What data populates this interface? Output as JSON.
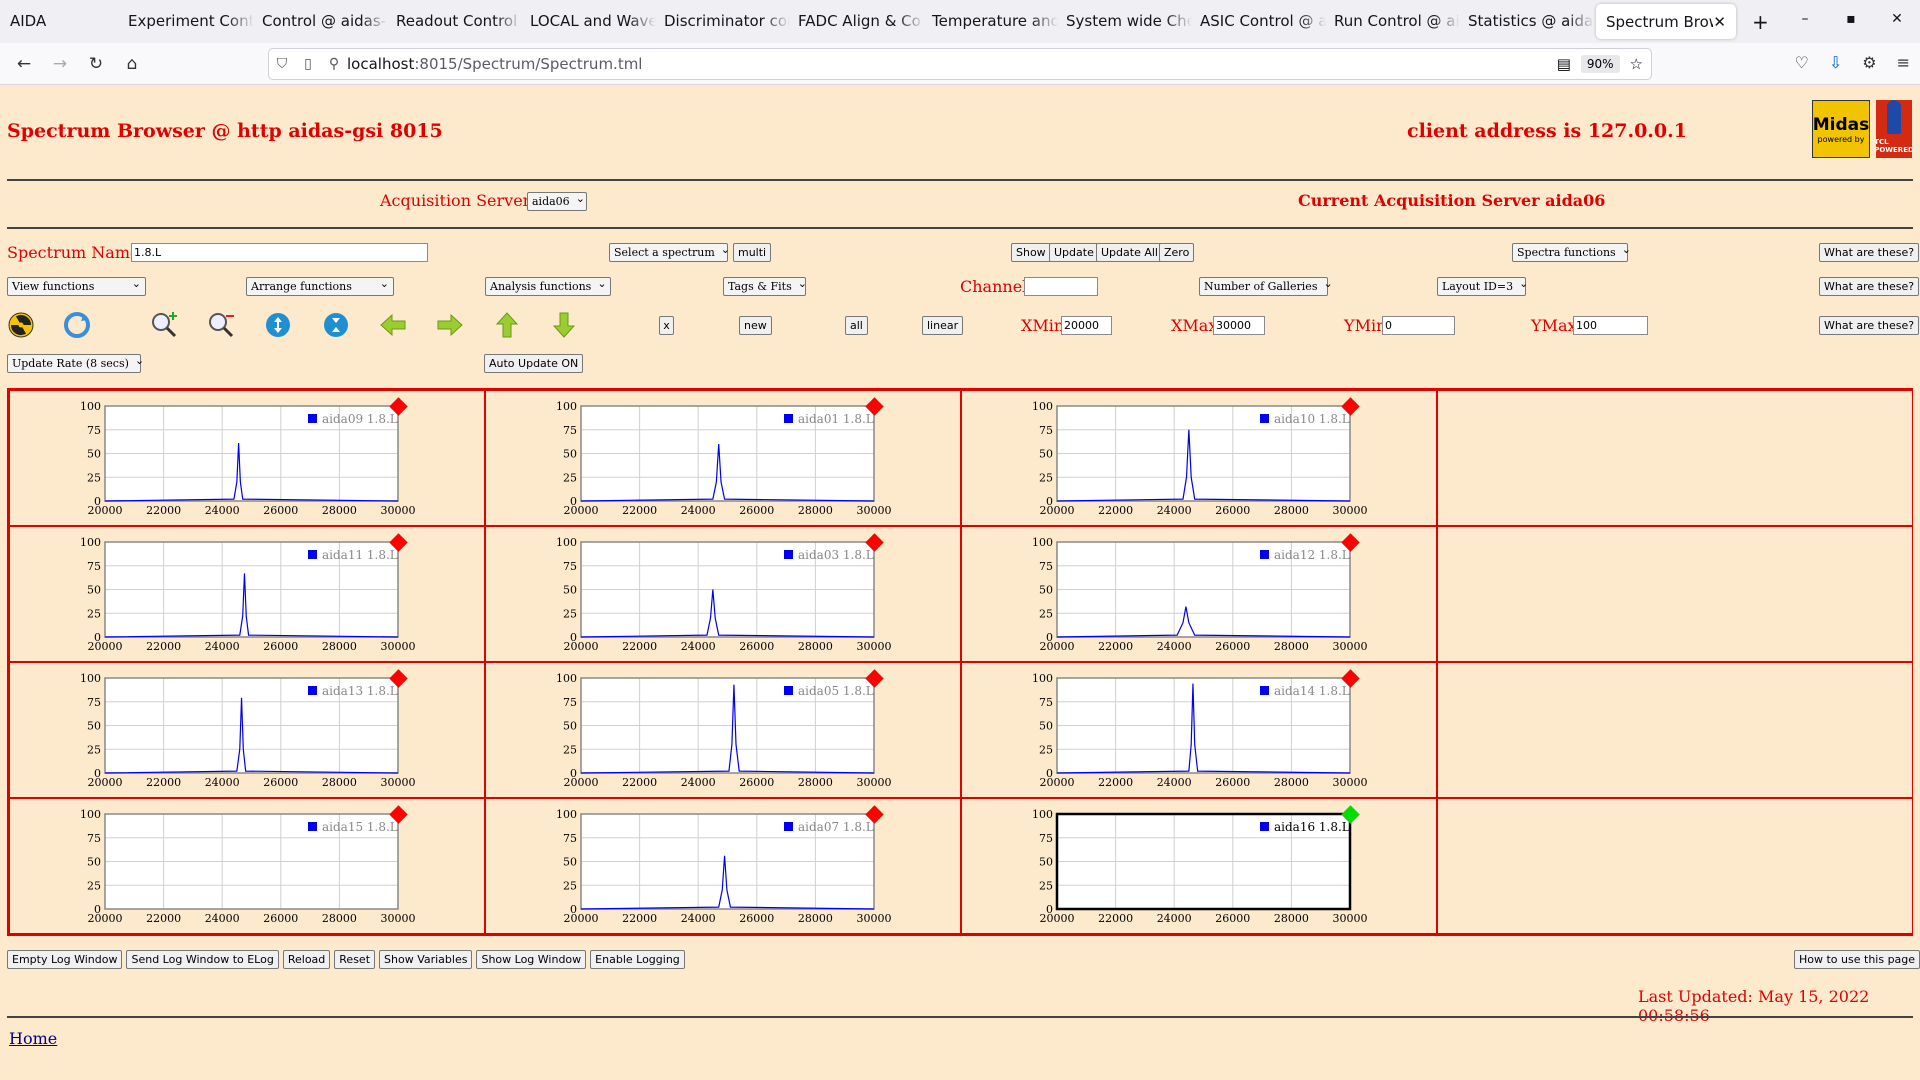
{
  "browser": {
    "app_name": "AIDA",
    "tabs": [
      "Experiment Contr",
      "Control @ aidas-",
      "Readout Control",
      "LOCAL and Wave",
      "Discriminator con",
      "FADC Align & Co",
      "Temperature and",
      "System wide Che",
      "ASIC Control @ a",
      "Run Control @ ai",
      "Statistics @ aida",
      "Spectrum Brow"
    ],
    "url_host": "localhost",
    "url_rest": ":8015/Spectrum/Spectrum.tml",
    "zoom": "90%"
  },
  "header": {
    "title": "Spectrum Browser @ http aidas-gsi 8015",
    "client": "client address is 127.0.0.1",
    "logo_text": "Midas",
    "logo_sub": "powered by",
    "logo2_text": "TCL POWERED"
  },
  "servers": {
    "label": "Acquisition Servers",
    "selected": "aida06",
    "current": "Current Acquisition Server aida06"
  },
  "controls": {
    "spectrum_name_label": "Spectrum Name:",
    "spectrum_name_value": "1.8.L",
    "select_spectrum": "Select a spectrum",
    "multi": "multi",
    "show": "Show",
    "update": "Update",
    "update_all": "Update All",
    "zero": "Zero",
    "spectra_functions": "Spectra functions",
    "what_are_these": "What are these?",
    "view_functions": "View functions",
    "arrange_functions": "Arrange functions",
    "analysis_functions": "Analysis functions",
    "tags_fits": "Tags & Fits",
    "channel_label": "Channel:",
    "channel_value": "",
    "number_of_galleries": "Number of Galleries",
    "layout": "Layout ID=3",
    "x_btn": "x",
    "new_btn": "new",
    "all_btn": "all",
    "linear_btn": "linear",
    "xmin_label": "XMin",
    "xmin_value": "20000",
    "xmax_label": "XMax",
    "xmax_value": "30000",
    "ymin_label": "YMin",
    "ymin_value": "0",
    "ymax_label": "YMax",
    "ymax_value": "100",
    "update_rate": "Update Rate (8 secs)",
    "auto_update": "Auto Update ON"
  },
  "toolbar_icons": [
    "radiation-icon",
    "refresh-icon",
    "zoom-in-icon",
    "zoom-out-icon",
    "expand-y-icon",
    "compress-y-icon",
    "arrow-left-icon",
    "arrow-right-icon",
    "arrow-up-icon",
    "arrow-down-icon"
  ],
  "chart_data": [
    {
      "type": "line",
      "legend": "aida09 1.8.L",
      "x": [
        20000,
        24400,
        24500,
        24560,
        24620,
        24700,
        30000
      ],
      "values": [
        0,
        2,
        20,
        61,
        20,
        2,
        0
      ],
      "status": "red",
      "xlim": [
        20000,
        30000
      ],
      "ylim": [
        0,
        100
      ],
      "xticks": [
        20000,
        22000,
        24000,
        26000,
        28000,
        30000
      ],
      "yticks": [
        0,
        25,
        50,
        75,
        100
      ]
    },
    {
      "type": "line",
      "legend": "aida01 1.8.L",
      "x": [
        20000,
        24500,
        24620,
        24700,
        24780,
        24900,
        30000
      ],
      "values": [
        0,
        2,
        20,
        60,
        20,
        2,
        0
      ],
      "status": "red",
      "xlim": [
        20000,
        30000
      ],
      "ylim": [
        0,
        100
      ],
      "xticks": [
        20000,
        22000,
        24000,
        26000,
        28000,
        30000
      ],
      "yticks": [
        0,
        25,
        50,
        75,
        100
      ]
    },
    {
      "type": "line",
      "legend": "aida10 1.8.L",
      "x": [
        20000,
        24300,
        24420,
        24500,
        24580,
        24700,
        30000
      ],
      "values": [
        0,
        2,
        25,
        75,
        25,
        2,
        0
      ],
      "status": "red",
      "xlim": [
        20000,
        30000
      ],
      "ylim": [
        0,
        100
      ],
      "xticks": [
        20000,
        22000,
        24000,
        26000,
        28000,
        30000
      ],
      "yticks": [
        0,
        25,
        50,
        75,
        100
      ]
    },
    {
      "type": "empty",
      "legend": "",
      "status": "none"
    },
    {
      "type": "line",
      "legend": "aida11 1.8.L",
      "x": [
        20000,
        24600,
        24700,
        24760,
        24820,
        24900,
        30000
      ],
      "values": [
        0,
        2,
        22,
        67,
        22,
        2,
        0
      ],
      "status": "red",
      "xlim": [
        20000,
        30000
      ],
      "ylim": [
        0,
        100
      ],
      "xticks": [
        20000,
        22000,
        24000,
        26000,
        28000,
        30000
      ],
      "yticks": [
        0,
        25,
        50,
        75,
        100
      ]
    },
    {
      "type": "line",
      "legend": "aida03 1.8.L",
      "x": [
        20000,
        24300,
        24420,
        24500,
        24580,
        24700,
        30000
      ],
      "values": [
        0,
        2,
        20,
        50,
        20,
        2,
        0
      ],
      "status": "red",
      "xlim": [
        20000,
        30000
      ],
      "ylim": [
        0,
        100
      ],
      "xticks": [
        20000,
        22000,
        24000,
        26000,
        28000,
        30000
      ],
      "yticks": [
        0,
        25,
        50,
        75,
        100
      ]
    },
    {
      "type": "line",
      "legend": "aida12 1.8.L",
      "x": [
        20000,
        24100,
        24300,
        24400,
        24500,
        24700,
        30000
      ],
      "values": [
        0,
        2,
        15,
        32,
        15,
        2,
        0
      ],
      "status": "red",
      "xlim": [
        20000,
        30000
      ],
      "ylim": [
        0,
        100
      ],
      "xticks": [
        20000,
        22000,
        24000,
        26000,
        28000,
        30000
      ],
      "yticks": [
        0,
        25,
        50,
        75,
        100
      ]
    },
    {
      "type": "empty",
      "legend": "",
      "status": "none"
    },
    {
      "type": "line",
      "legend": "aida13 1.8.L",
      "x": [
        20000,
        24500,
        24600,
        24660,
        24720,
        24800,
        30000
      ],
      "values": [
        0,
        2,
        25,
        79,
        25,
        2,
        0
      ],
      "status": "red",
      "xlim": [
        20000,
        30000
      ],
      "ylim": [
        0,
        100
      ],
      "xticks": [
        20000,
        22000,
        24000,
        26000,
        28000,
        30000
      ],
      "yticks": [
        0,
        25,
        50,
        75,
        100
      ]
    },
    {
      "type": "line",
      "legend": "aida05 1.8.L",
      "x": [
        20000,
        25050,
        25150,
        25220,
        25290,
        25400,
        30000
      ],
      "values": [
        0,
        2,
        30,
        93,
        30,
        2,
        0
      ],
      "status": "red",
      "xlim": [
        20000,
        30000
      ],
      "ylim": [
        0,
        100
      ],
      "xticks": [
        20000,
        22000,
        24000,
        26000,
        28000,
        30000
      ],
      "yticks": [
        0,
        25,
        50,
        75,
        100
      ]
    },
    {
      "type": "line",
      "legend": "aida14 1.8.L",
      "x": [
        20000,
        24500,
        24580,
        24640,
        24700,
        24800,
        30000
      ],
      "values": [
        0,
        2,
        30,
        94,
        30,
        2,
        0
      ],
      "status": "red",
      "xlim": [
        20000,
        30000
      ],
      "ylim": [
        0,
        100
      ],
      "xticks": [
        20000,
        22000,
        24000,
        26000,
        28000,
        30000
      ],
      "yticks": [
        0,
        25,
        50,
        75,
        100
      ]
    },
    {
      "type": "empty",
      "legend": "",
      "status": "none"
    },
    {
      "type": "line",
      "legend": "aida15 1.8.L",
      "x": [],
      "values": [],
      "status": "red",
      "xlim": [
        20000,
        30000
      ],
      "ylim": [
        0,
        100
      ],
      "xticks": [
        20000,
        22000,
        24000,
        26000,
        28000,
        30000
      ],
      "yticks": [
        0,
        25,
        50,
        75,
        100
      ]
    },
    {
      "type": "line",
      "legend": "aida07 1.8.L",
      "x": [
        20000,
        24700,
        24820,
        24900,
        24980,
        25100,
        30000
      ],
      "values": [
        0,
        2,
        20,
        56,
        20,
        2,
        0
      ],
      "status": "red",
      "xlim": [
        20000,
        30000
      ],
      "ylim": [
        0,
        100
      ],
      "xticks": [
        20000,
        22000,
        24000,
        26000,
        28000,
        30000
      ],
      "yticks": [
        0,
        25,
        50,
        75,
        100
      ]
    },
    {
      "type": "line",
      "legend": "aida16 1.8.L",
      "x": [],
      "values": [],
      "status": "green",
      "selected": true,
      "xlim": [
        20000,
        30000
      ],
      "ylim": [
        0,
        100
      ],
      "xticks": [
        20000,
        22000,
        24000,
        26000,
        28000,
        30000
      ],
      "yticks": [
        0,
        25,
        50,
        75,
        100
      ]
    },
    {
      "type": "empty",
      "legend": "",
      "status": "none"
    }
  ],
  "footer": {
    "buttons": [
      "Empty Log Window",
      "Send Log Window to ELog",
      "Reload",
      "Reset",
      "Show Variables",
      "Show Log Window",
      "Enable Logging"
    ],
    "how_to": "How to use this page",
    "last_updated": "Last Updated: May 15, 2022 00:58:56",
    "home": "Home"
  },
  "colors": {
    "page_bg": "#fde9cc",
    "accent_red": "#e00000",
    "trace_blue": "#0000ee",
    "status_red": "#ff0000",
    "status_green": "#00dd00"
  }
}
